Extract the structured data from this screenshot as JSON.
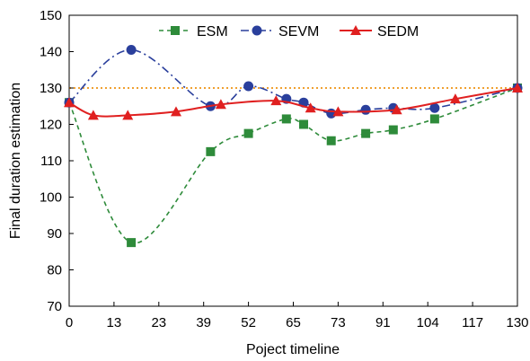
{
  "chart_data": {
    "type": "line",
    "xlabel": "Poject timeline",
    "ylabel": "Final duration estimation",
    "x_tick_labels": [
      "0",
      "13",
      "23",
      "39",
      "52",
      "65",
      "73",
      "91",
      "104",
      "117",
      "130"
    ],
    "y_ticks": [
      70,
      80,
      90,
      100,
      110,
      120,
      130,
      140,
      150
    ],
    "xlim": [
      0,
      130
    ],
    "ylim": [
      70,
      150
    ],
    "grid": false,
    "legend_position": "top",
    "reference_line": {
      "y": 130,
      "color": "#f0a030",
      "style": "dotted"
    },
    "series": [
      {
        "name": "ESM",
        "color": "#2e8b3a",
        "marker": "square",
        "line_style": "dashed",
        "points": [
          [
            0,
            126
          ],
          [
            18,
            87.5
          ],
          [
            41,
            112.5
          ],
          [
            52,
            117.5
          ],
          [
            63,
            121.5
          ],
          [
            68,
            120
          ],
          [
            76,
            115.5
          ],
          [
            86,
            117.5
          ],
          [
            94,
            118.5
          ],
          [
            106,
            121.5
          ],
          [
            130,
            130
          ]
        ]
      },
      {
        "name": "SEVM",
        "color": "#2a3f9c",
        "marker": "circle",
        "line_style": "dashdot",
        "points": [
          [
            0,
            126
          ],
          [
            18,
            140.5
          ],
          [
            41,
            125
          ],
          [
            52,
            130.5
          ],
          [
            63,
            127
          ],
          [
            68,
            126
          ],
          [
            76,
            123
          ],
          [
            86,
            124
          ],
          [
            94,
            124.5
          ],
          [
            106,
            124.5
          ],
          [
            130,
            130
          ]
        ]
      },
      {
        "name": "SEDM",
        "color": "#e02020",
        "marker": "triangle",
        "line_style": "solid",
        "points": [
          [
            0,
            126
          ],
          [
            7,
            122.5
          ],
          [
            17,
            122.5
          ],
          [
            31,
            123.5
          ],
          [
            44,
            125.5
          ],
          [
            60,
            126.5
          ],
          [
            70,
            124.5
          ],
          [
            78,
            123.5
          ],
          [
            95,
            124
          ],
          [
            112,
            127
          ],
          [
            130,
            130
          ]
        ]
      }
    ]
  }
}
